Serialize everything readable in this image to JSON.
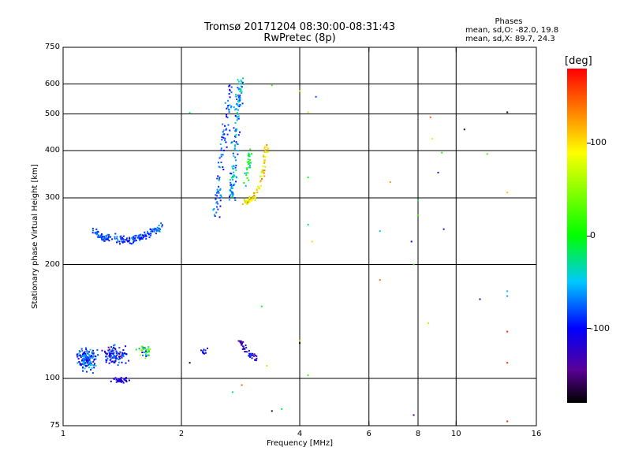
{
  "header": {
    "title_line1": "Tromsø 20171204 08:30:00-08:31:43",
    "title_line2": "RwPretec (8p)",
    "info_title": "Phases",
    "info_line1": "mean, sd,O: -82.0, 19.8",
    "info_line2": "mean, sd,X:  89.7, 24.3"
  },
  "colorbar": {
    "unit_label": "[deg]",
    "ticks": [
      {
        "value": 100,
        "label": "100"
      },
      {
        "value": 0,
        "label": "0"
      },
      {
        "value": -100,
        "label": "-100"
      }
    ],
    "range": [
      -180,
      180
    ]
  },
  "chart_data": {
    "type": "scatter",
    "xlabel": "Frequency [MHz]",
    "ylabel": "Stationary phase Virtual Height [km]",
    "xscale": "log",
    "yscale": "log",
    "xlim": [
      1,
      16
    ],
    "ylim": [
      75,
      750
    ],
    "grid": true,
    "x_ticks": [
      {
        "value": 1,
        "label": "1"
      },
      {
        "value": 2,
        "label": "2"
      },
      {
        "value": 4,
        "label": "4"
      },
      {
        "value": 6,
        "label": "6"
      },
      {
        "value": 8,
        "label": "8"
      },
      {
        "value": 10,
        "label": "10"
      },
      {
        "value": 16,
        "label": "16"
      }
    ],
    "x_gridlines": [
      2,
      4,
      6,
      8,
      10
    ],
    "y_ticks": [
      {
        "value": 75,
        "label": "75"
      },
      {
        "value": 100,
        "label": "100"
      },
      {
        "value": 200,
        "label": "200"
      },
      {
        "value": 300,
        "label": "300"
      },
      {
        "value": 400,
        "label": "400"
      },
      {
        "value": 500,
        "label": "500"
      },
      {
        "value": 600,
        "label": "600"
      },
      {
        "value": 750,
        "label": "750"
      }
    ],
    "y_gridlines": [
      100,
      200,
      300,
      400,
      500,
      600
    ],
    "series": [
      {
        "kind": "trace",
        "points": [
          [
            1.2,
            247
          ],
          [
            1.25,
            235
          ],
          [
            1.3,
            236
          ],
          [
            1.4,
            232
          ],
          [
            1.5,
            233
          ],
          [
            1.6,
            238
          ],
          [
            1.7,
            243
          ],
          [
            1.78,
            251
          ]
        ],
        "spread": 0.035,
        "count": 180,
        "phase": [
          -110,
          -60
        ]
      },
      {
        "kind": "cluster",
        "center": [
          1.15,
          112
        ],
        "spread": [
          0.08,
          0.1
        ],
        "count": 150,
        "phase": [
          -120,
          -40
        ]
      },
      {
        "kind": "cluster",
        "center": [
          1.35,
          115
        ],
        "spread": [
          0.1,
          0.08
        ],
        "count": 110,
        "phase": [
          -140,
          -60
        ]
      },
      {
        "kind": "cluster",
        "center": [
          1.4,
          99
        ],
        "spread": [
          0.07,
          0.02
        ],
        "count": 40,
        "phase": [
          -130,
          -100
        ]
      },
      {
        "kind": "cluster",
        "center": [
          1.62,
          118
        ],
        "spread": [
          0.06,
          0.06
        ],
        "count": 35,
        "phase": [
          -140,
          90
        ]
      },
      {
        "kind": "trace",
        "points": [
          [
            2.45,
            270
          ],
          [
            2.5,
            320
          ],
          [
            2.55,
            400
          ],
          [
            2.62,
            500
          ],
          [
            2.65,
            600
          ]
        ],
        "spread": 0.05,
        "count": 90,
        "phase": [
          -110,
          -50
        ]
      },
      {
        "kind": "trace",
        "points": [
          [
            2.68,
            300
          ],
          [
            2.72,
            350
          ],
          [
            2.75,
            450
          ],
          [
            2.8,
            550
          ],
          [
            2.85,
            620
          ]
        ],
        "spread": 0.05,
        "count": 140,
        "phase": [
          -100,
          -20
        ]
      },
      {
        "kind": "trace",
        "points": [
          [
            2.9,
            320
          ],
          [
            2.95,
            360
          ],
          [
            3.0,
            400
          ]
        ],
        "spread": 0.04,
        "count": 30,
        "phase": [
          -60,
          20
        ]
      },
      {
        "kind": "trace",
        "points": [
          [
            2.9,
            292
          ],
          [
            3.0,
            296
          ],
          [
            3.1,
            305
          ],
          [
            3.2,
            330
          ],
          [
            3.25,
            370
          ],
          [
            3.3,
            410
          ]
        ],
        "spread": 0.03,
        "count": 90,
        "phase": [
          60,
          140
        ]
      },
      {
        "kind": "trace",
        "points": [
          [
            2.8,
            128
          ],
          [
            2.9,
            120
          ],
          [
            3.0,
            115
          ],
          [
            3.1,
            114
          ]
        ],
        "spread": 0.03,
        "count": 45,
        "phase": [
          -150,
          -80
        ]
      },
      {
        "kind": "cluster",
        "center": [
          2.3,
          118
        ],
        "spread": [
          0.05,
          0.04
        ],
        "count": 10,
        "phase": [
          -140,
          -90
        ]
      },
      {
        "kind": "points",
        "points": [
          [
            2.1,
            110
          ],
          [
            2.1,
            503
          ],
          [
            2.7,
            92
          ],
          [
            2.85,
            96
          ],
          [
            3.3,
            108
          ],
          [
            3.2,
            155
          ],
          [
            3.4,
            82
          ],
          [
            3.6,
            83
          ],
          [
            3.4,
            595
          ],
          [
            4.0,
            575
          ],
          [
            4.0,
            126
          ],
          [
            4.0,
            124
          ],
          [
            4.2,
            102
          ],
          [
            4.2,
            340
          ],
          [
            4.2,
            255
          ],
          [
            4.3,
            230
          ],
          [
            4.4,
            555
          ],
          [
            4.2,
            505
          ],
          [
            6.4,
            245
          ],
          [
            6.4,
            182
          ],
          [
            6.8,
            330
          ],
          [
            7.7,
            230
          ],
          [
            7.8,
            200
          ],
          [
            7.8,
            80
          ],
          [
            8.0,
            295
          ],
          [
            8.0,
            270
          ],
          [
            8.5,
            140
          ],
          [
            8.6,
            490
          ],
          [
            8.7,
            430
          ],
          [
            9.0,
            350
          ],
          [
            9.2,
            395
          ],
          [
            9.3,
            248
          ],
          [
            10.5,
            455
          ],
          [
            11.5,
            162
          ],
          [
            12.0,
            392
          ],
          [
            13.5,
            310
          ],
          [
            13.5,
            170
          ],
          [
            13.5,
            165
          ],
          [
            13.5,
            133
          ],
          [
            13.5,
            110
          ],
          [
            13.5,
            505
          ],
          [
            13.5,
            77
          ]
        ],
        "phase": [
          -180,
          180
        ]
      }
    ]
  }
}
